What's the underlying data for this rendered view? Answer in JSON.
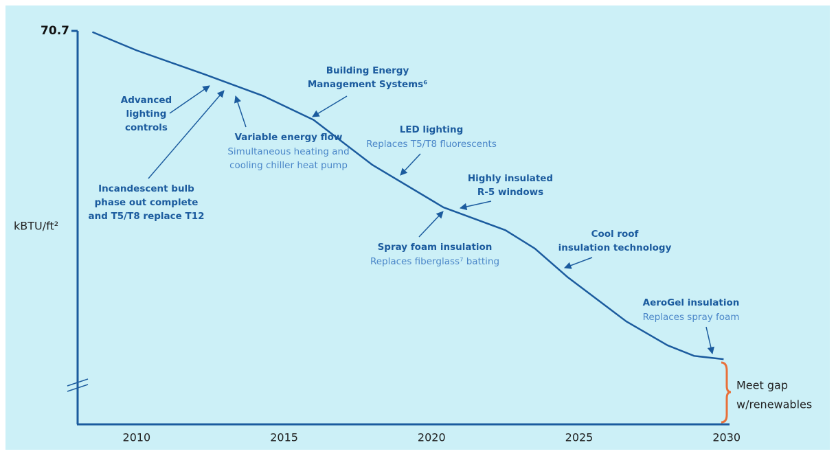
{
  "chart_data": {
    "type": "line",
    "y_label": "kBTU/ft²",
    "x": [
      2008.5,
      2010,
      2012.3,
      2014.3,
      2016,
      2018,
      2020.4,
      2022.5,
      2023.5,
      2024.6,
      2026.6,
      2028,
      2028.9,
      2029.9
    ],
    "series": [
      {
        "color": "#1b5b9e",
        "values": [
          70.5,
          67.2,
          62.9,
          59.0,
          54.7,
          46.6,
          39.0,
          34.9,
          31.6,
          26.5,
          18.5,
          14.2,
          12.3,
          11.7
        ]
      }
    ],
    "xlim": [
      2008,
      2030.1
    ],
    "xticks": [
      2010,
      2015,
      2020,
      2025,
      2030
    ],
    "ylim": [
      0,
      70.7
    ],
    "yticks": [
      70.7
    ],
    "grid": false,
    "annotations": [
      {
        "lines": [
          "Advanced",
          "lighting",
          "controls"
        ]
      },
      {
        "lines": [
          "Building Energy",
          "Management Systems⁶"
        ]
      },
      {
        "lines": [
          "Variable energy flow"
        ],
        "sublines": [
          "Simultaneous heating and",
          "cooling chiller heat pump"
        ]
      },
      {
        "lines": [
          "LED lighting"
        ],
        "sublines": [
          "Replaces T5/T8 fluorescents"
        ]
      },
      {
        "lines": [
          "Incandescent bulb",
          "phase out complete",
          "and T5/T8 replace T12"
        ]
      },
      {
        "lines": [
          "Highly insulated",
          "R-5 windows"
        ]
      },
      {
        "lines": [
          "Spray foam insulation"
        ],
        "sublines": [
          "Replaces fiberglass⁷ batting"
        ]
      },
      {
        "lines": [
          "Cool roof",
          "insulation technology"
        ]
      },
      {
        "lines": [
          "AeroGel insulation"
        ],
        "sublines": [
          "Replaces spray foam"
        ]
      }
    ],
    "gap_label": [
      "Meet gap",
      "w/renewables"
    ]
  }
}
